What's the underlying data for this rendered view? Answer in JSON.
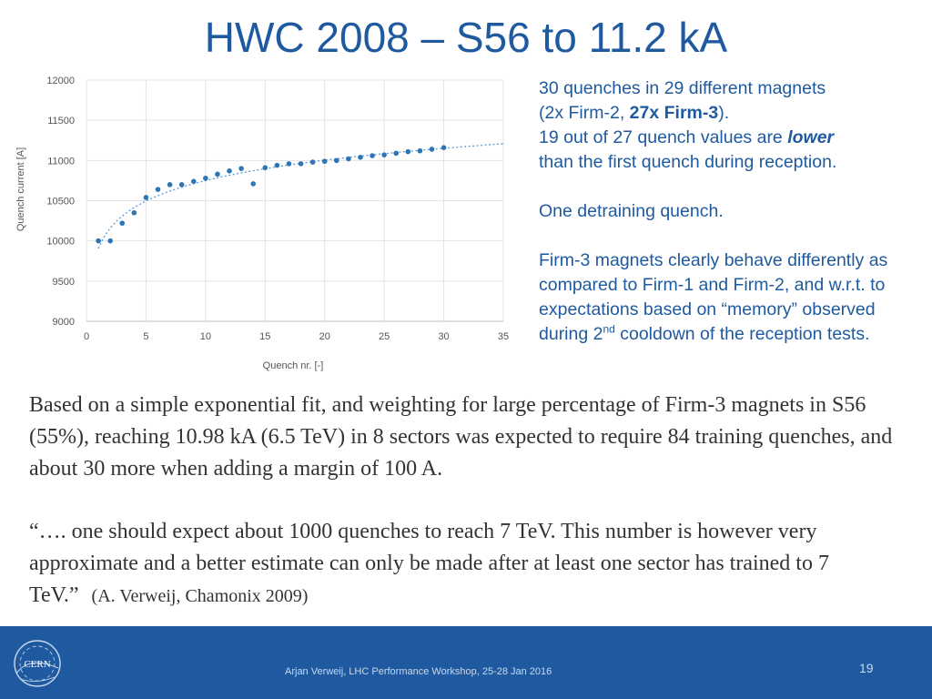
{
  "slide": {
    "title": "HWC 2008 – S56 to 11.2 kA",
    "side_text": {
      "p1_line1": "30 quenches in 29 different magnets",
      "p1_line2_prefix": "(2x Firm-2, ",
      "p1_line2_bold": "27x Firm-3",
      "p1_line2_suffix": ").",
      "p1_line3_prefix": "19 out of 27 quench values are ",
      "p1_line3_bold": "lower",
      "p1_line4": "than the first quench during reception.",
      "p2": "One detraining quench.",
      "p3_main": "Firm-3 magnets clearly behave differently as compared to Firm-1 and Firm-2, and w.r.t. to expectations based on “memory” observed during 2",
      "p3_sup": "nd",
      "p3_tail": " cooldown of the reception tests."
    },
    "body": {
      "para1": "Based on a simple exponential fit, and weighting for large percentage of Firm-3 magnets in S56 (55%), reaching 10.98 kA (6.5 TeV) in 8 sectors was expected to require 84 training quenches, and about 30 more when adding a margin of 100 A.",
      "quote": "“…. one should expect about 1000 quenches to reach 7 TeV. This number is however very approximate and a better estimate can only be made after at least one sector has trained to 7 TeV.”",
      "citation": "(A. Verweij, Chamonix 2009)"
    },
    "footer": {
      "text": "Arjan Verweij, LHC Performance Workshop, 25-28 Jan 2016",
      "page_number": "19",
      "logo_text": "CERN",
      "logo_icon": "cern-logo-icon"
    },
    "colors": {
      "title": "#1f5aa0",
      "footer_bg": "#1f5aa0",
      "marker": "#2e75b6",
      "trendline": "#5b9bd5"
    }
  },
  "chart_data": {
    "type": "scatter",
    "xlabel": "Quench nr. [-]",
    "ylabel": "Quench current [A]",
    "xlim": [
      0,
      35
    ],
    "ylim": [
      9000,
      12000
    ],
    "xticks": [
      "0",
      "5",
      "10",
      "15",
      "20",
      "25",
      "30",
      "35"
    ],
    "yticks": [
      "9000",
      "9500",
      "10000",
      "10500",
      "11000",
      "11500",
      "12000"
    ],
    "grid": true,
    "trendline": "dotted",
    "x": [
      1,
      2,
      3,
      4,
      5,
      6,
      7,
      8,
      9,
      10,
      11,
      12,
      13,
      14,
      15,
      16,
      17,
      18,
      19,
      20,
      21,
      22,
      23,
      24,
      25,
      26,
      27,
      28,
      29,
      30
    ],
    "y": [
      10000,
      10000,
      10220,
      10350,
      10540,
      10640,
      10700,
      10700,
      10740,
      10780,
      10830,
      10870,
      10900,
      10710,
      10910,
      10940,
      10960,
      10960,
      10980,
      10990,
      11000,
      11020,
      11040,
      11060,
      11070,
      11090,
      11110,
      11120,
      11140,
      11160
    ]
  }
}
